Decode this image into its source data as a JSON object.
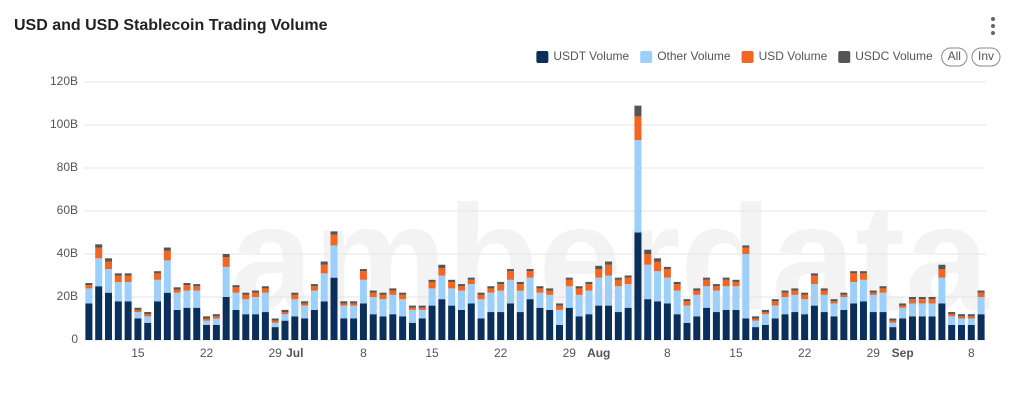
{
  "chart_data": {
    "type": "stacked-bar",
    "title": "USD and USD Stablecoin Trading Volume",
    "watermark": "amberdata",
    "buttons": [
      "All",
      "Inv"
    ],
    "categories": [
      null,
      null,
      null,
      null,
      null,
      "15",
      null,
      null,
      null,
      null,
      null,
      null,
      "22",
      null,
      null,
      null,
      null,
      null,
      null,
      "29",
      null,
      "Jul",
      null,
      null,
      null,
      null,
      null,
      null,
      "8",
      null,
      null,
      null,
      null,
      null,
      null,
      "15",
      null,
      null,
      null,
      null,
      null,
      null,
      "22",
      null,
      null,
      null,
      null,
      null,
      null,
      "29",
      null,
      null,
      "Aug",
      null,
      null,
      null,
      null,
      null,
      null,
      "8",
      null,
      null,
      null,
      null,
      null,
      null,
      "15",
      null,
      null,
      null,
      null,
      null,
      null,
      "22",
      null,
      null,
      null,
      null,
      null,
      null,
      "29",
      null,
      null,
      "Sep",
      null,
      null,
      null,
      null,
      null,
      null,
      "8",
      null
    ],
    "series": [
      {
        "name": "USDT Volume",
        "color": "#0b2f5b",
        "values": [
          17,
          25,
          22,
          18,
          18,
          10,
          8,
          18,
          22,
          14,
          15,
          15,
          7,
          7,
          20,
          14,
          12,
          12,
          13,
          6,
          9,
          11,
          10,
          14,
          18,
          29,
          10,
          10,
          17,
          12,
          11,
          12,
          11,
          8,
          10,
          16,
          19,
          16,
          14,
          17,
          10,
          13,
          13,
          17,
          13,
          19,
          15,
          14,
          7,
          15,
          11,
          12,
          16,
          16,
          13,
          15,
          50,
          19,
          18,
          17,
          12,
          8,
          11,
          15,
          13,
          14,
          14,
          10,
          6,
          7,
          10,
          12,
          13,
          12,
          16,
          13,
          11,
          14,
          17,
          18,
          13,
          13,
          6,
          10,
          11,
          11,
          11,
          17,
          7,
          7,
          7,
          12
        ]
      },
      {
        "name": "Other Volume",
        "color": "#9ccffa",
        "values": [
          7,
          13,
          11,
          9,
          9,
          3,
          3,
          10,
          15,
          8,
          8,
          8,
          2,
          3,
          14,
          8,
          7,
          8,
          9,
          2,
          3,
          8,
          6,
          9,
          13,
          15,
          6,
          6,
          11,
          8,
          8,
          9,
          8,
          6,
          4,
          8,
          11,
          8,
          9,
          9,
          9,
          9,
          10,
          11,
          10,
          10,
          7,
          7,
          7,
          10,
          10,
          11,
          13,
          14,
          12,
          11,
          43,
          16,
          14,
          12,
          11,
          8,
          10,
          10,
          10,
          11,
          11,
          30,
          3,
          5,
          6,
          8,
          8,
          7,
          10,
          8,
          6,
          6,
          10,
          10,
          8,
          9,
          2,
          5,
          6,
          6,
          6,
          12,
          4,
          3,
          3,
          8
        ]
      },
      {
        "name": "USD Volume",
        "color": "#f26522",
        "values": [
          1.5,
          5,
          3.5,
          3,
          3,
          1,
          1,
          3,
          4.5,
          1.5,
          2.5,
          2,
          1,
          1,
          4.5,
          2.5,
          2,
          2,
          2,
          1,
          1,
          2,
          1,
          2,
          4,
          5,
          1,
          1,
          4,
          2,
          2,
          2,
          2,
          1,
          1,
          3,
          3.5,
          3,
          2,
          2,
          2,
          2,
          3,
          4,
          3,
          3,
          2,
          2,
          2,
          3,
          3,
          3,
          4,
          5,
          3,
          3,
          11,
          5,
          4.5,
          4,
          3,
          2,
          2,
          3,
          2,
          3,
          2,
          3,
          1,
          1,
          2,
          2,
          2,
          2,
          4,
          2,
          1,
          1,
          4,
          3,
          1,
          2,
          1,
          1,
          2,
          2,
          2,
          4,
          1,
          1,
          1,
          2
        ]
      },
      {
        "name": "USDC Volume",
        "color": "#555555",
        "values": [
          1,
          1.5,
          1.5,
          1,
          1,
          1,
          1,
          1,
          1.5,
          1,
          1,
          1,
          1,
          1,
          1.5,
          1,
          1,
          1,
          1,
          1,
          1,
          1,
          1,
          1,
          1.5,
          1.5,
          1,
          1,
          1,
          1,
          1,
          1,
          1,
          1,
          1,
          1,
          1.5,
          1,
          1,
          1,
          1,
          1,
          1,
          1,
          1,
          1,
          1,
          1,
          1,
          1,
          1,
          1,
          1.5,
          1.5,
          1,
          1,
          5,
          2,
          1.5,
          1,
          1,
          1,
          1,
          1,
          1,
          1,
          1,
          1,
          1,
          1,
          1,
          1,
          1,
          1,
          1,
          1,
          1,
          1,
          1,
          1,
          1,
          1,
          1,
          1,
          1,
          1,
          1,
          2,
          1,
          1,
          1,
          1
        ]
      }
    ],
    "ylim": [
      0,
      120
    ],
    "yticks": [
      0,
      {
        "value": 20,
        "label": "20B"
      },
      {
        "value": 40,
        "label": "40B"
      },
      {
        "value": 60,
        "label": "60B"
      },
      {
        "value": 80,
        "label": "80B"
      },
      {
        "value": 100,
        "label": "100B"
      },
      {
        "value": 120,
        "label": "120B"
      }
    ],
    "grid": true,
    "legend": "top-right"
  }
}
